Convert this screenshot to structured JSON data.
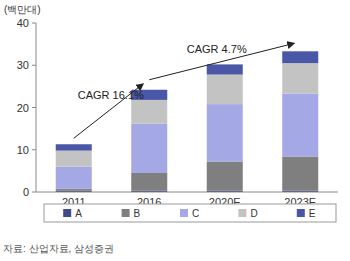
{
  "chart_data": {
    "type": "bar",
    "stacked": true,
    "y_label": "(백만대)",
    "categories": [
      "2011",
      "2016",
      "2020E",
      "2023E"
    ],
    "series": [
      {
        "name": "A",
        "color": "#3d4a8c",
        "values": [
          0.3,
          0.3,
          0.3,
          0.3
        ]
      },
      {
        "name": "B",
        "color": "#7f7f7f",
        "values": [
          0.5,
          4.2,
          6.9,
          8.1
        ]
      },
      {
        "name": "C",
        "color": "#a4a8e4",
        "values": [
          5.2,
          11.7,
          13.6,
          14.9
        ]
      },
      {
        "name": "D",
        "color": "#c3c3c3",
        "values": [
          3.8,
          5.6,
          7.0,
          7.2
        ]
      },
      {
        "name": "E",
        "color": "#4a56a6",
        "values": [
          1.5,
          2.4,
          2.4,
          2.8
        ]
      }
    ],
    "ylim": [
      0,
      40
    ],
    "yticks": [
      0,
      10,
      20,
      30,
      40
    ],
    "grid": false,
    "legend": "bottom",
    "annotations": [
      "CAGR 16.1%",
      "CAGR 4.7%"
    ],
    "source": "자료: 산업자료, 삼성증권"
  }
}
